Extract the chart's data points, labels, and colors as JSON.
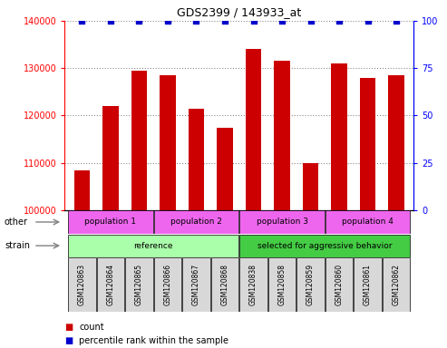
{
  "title": "GDS2399 / 143933_at",
  "samples": [
    "GSM120863",
    "GSM120864",
    "GSM120865",
    "GSM120866",
    "GSM120867",
    "GSM120868",
    "GSM120838",
    "GSM120858",
    "GSM120859",
    "GSM120860",
    "GSM120861",
    "GSM120862"
  ],
  "counts": [
    108500,
    122000,
    129500,
    128500,
    121500,
    117500,
    134000,
    131500,
    110000,
    131000,
    128000,
    128500
  ],
  "percentile_ranks": [
    100,
    100,
    100,
    100,
    100,
    100,
    100,
    100,
    100,
    100,
    100,
    100
  ],
  "ylim_left": [
    100000,
    140000
  ],
  "ylim_right": [
    0,
    100
  ],
  "yticks_left": [
    100000,
    110000,
    120000,
    130000,
    140000
  ],
  "yticks_right": [
    0,
    25,
    50,
    75,
    100
  ],
  "bar_color": "#cc0000",
  "dot_color": "#0000cc",
  "strain_labels": [
    {
      "text": "reference",
      "start": 0,
      "end": 5,
      "color": "#aaffaa"
    },
    {
      "text": "selected for aggressive behavior",
      "start": 6,
      "end": 11,
      "color": "#44cc44"
    }
  ],
  "other_labels": [
    {
      "text": "population 1",
      "start": 0,
      "end": 2,
      "color": "#ee66ee"
    },
    {
      "text": "population 2",
      "start": 3,
      "end": 5,
      "color": "#ee66ee"
    },
    {
      "text": "population 3",
      "start": 6,
      "end": 8,
      "color": "#ee66ee"
    },
    {
      "text": "population 4",
      "start": 9,
      "end": 11,
      "color": "#ee66ee"
    }
  ],
  "strain_row_label": "strain",
  "other_row_label": "other",
  "legend_count_label": "count",
  "legend_percentile_label": "percentile rank within the sample",
  "bg_color": "#ffffff",
  "grid_color": "#888888",
  "tick_area_bg": "#d8d8d8"
}
